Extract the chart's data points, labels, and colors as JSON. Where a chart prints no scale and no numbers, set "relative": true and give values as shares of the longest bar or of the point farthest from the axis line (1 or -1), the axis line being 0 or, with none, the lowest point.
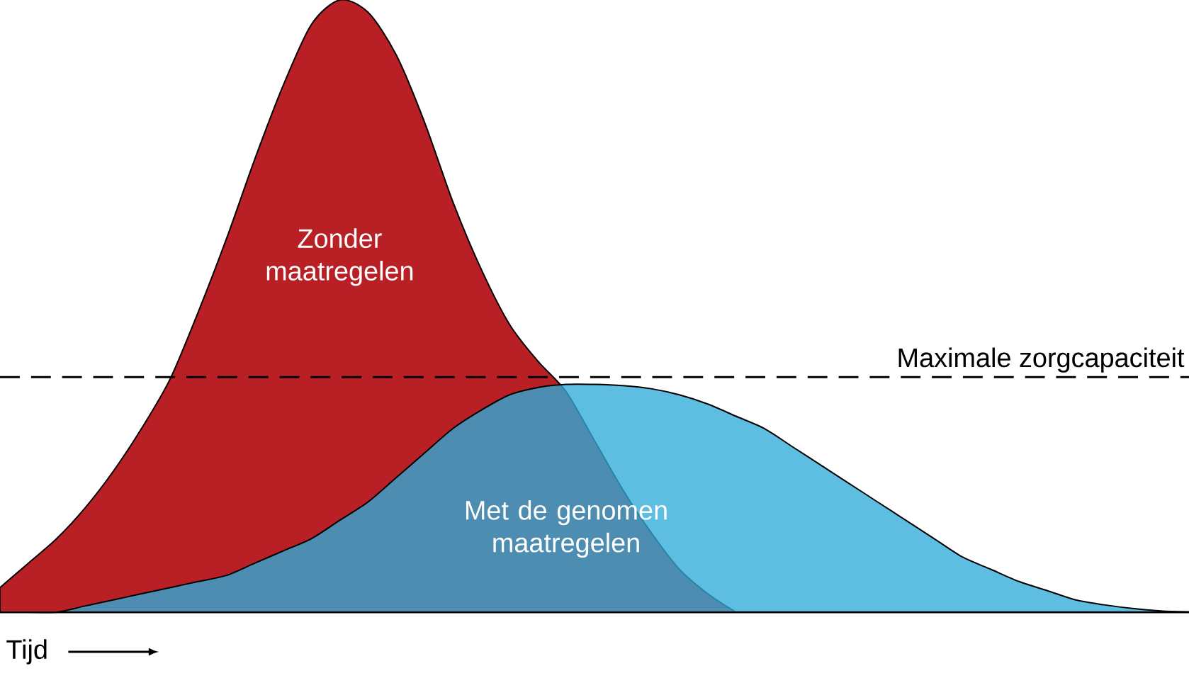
{
  "chart_data": {
    "type": "area",
    "relative": true,
    "xlabel": "Tijd",
    "categories": [
      null,
      null,
      null,
      null,
      null,
      null,
      null,
      null,
      null,
      null,
      null,
      null,
      null,
      null,
      null,
      null,
      null,
      null,
      null,
      null,
      null,
      null,
      null,
      null,
      null,
      null,
      null,
      null,
      null,
      null,
      null,
      null,
      null,
      null,
      null,
      null,
      null,
      null,
      null,
      null,
      null,
      null,
      null
    ],
    "series": [
      {
        "name": "Zonder maatregelen",
        "color": "#b82025",
        "values": [
          0.04,
          0.08,
          0.12,
          0.17,
          0.23,
          0.3,
          0.38,
          0.49,
          0.61,
          0.74,
          0.86,
          0.96,
          1.0,
          0.98,
          0.91,
          0.8,
          0.67,
          0.56,
          0.47,
          0.41,
          0.36,
          0.28,
          0.2,
          0.13,
          0.07,
          0.03,
          0,
          null,
          null,
          null,
          null,
          null,
          null,
          null,
          null,
          null,
          null,
          null,
          null,
          null,
          null,
          null,
          null
        ]
      },
      {
        "name": "Met de genomen maatregelen",
        "color": "#30acd9",
        "values": [
          0,
          0,
          0,
          0.01,
          0.02,
          0.03,
          0.04,
          0.05,
          0.06,
          0.08,
          0.1,
          0.12,
          0.15,
          0.18,
          0.22,
          0.26,
          0.3,
          0.33,
          0.355,
          0.367,
          0.372,
          0.372,
          0.37,
          0.365,
          0.355,
          0.34,
          0.32,
          0.3,
          0.27,
          0.24,
          0.21,
          0.18,
          0.15,
          0.12,
          0.09,
          0.07,
          0.05,
          0.035,
          0.02,
          0.012,
          0.006,
          0.002,
          0
        ]
      }
    ],
    "ref_lines": [
      {
        "axis": "y",
        "value": 0.384,
        "label": "Maximale zorgcapaciteit",
        "line_style": "dashed"
      }
    ]
  }
}
